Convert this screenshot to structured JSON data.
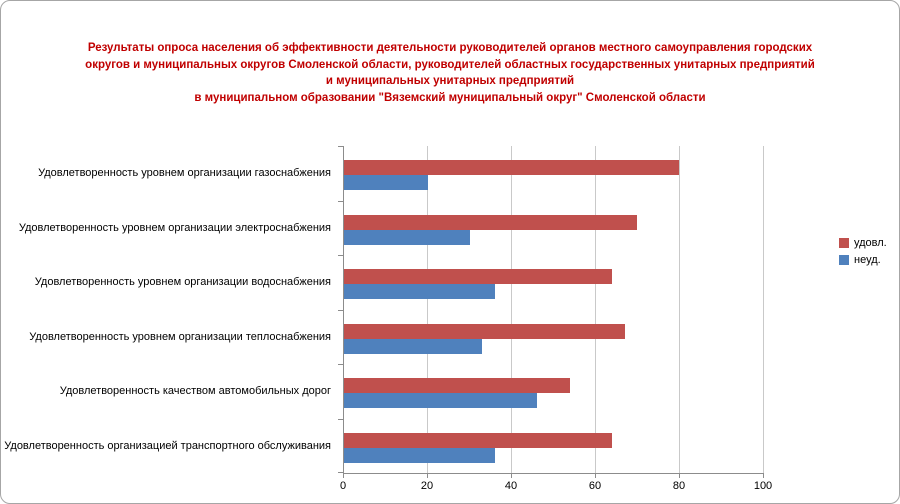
{
  "chart_data": {
    "type": "bar",
    "orientation": "horizontal",
    "title_lines": [
      "Результаты опроса населения об эффективности деятельности руководителей органов местного самоуправления городских",
      "округов и муниципальных округов Смоленской области, руководителей областных государственных унитарных предприятий",
      "и муниципальных унитарных предприятий",
      "в муниципальном образовании \"Вяземский муниципальный округ\" Смоленской области"
    ],
    "title_color": "#C00000",
    "categories": [
      "Удовлетворенность уровнем организации газоснабжения",
      "Удовлетворенность уровнем организации электроснабжения",
      "Удовлетворенность уровнем организации водоснабжения",
      "Удовлетворенность уровнем организации теплоснабжения",
      "Удовлетворенность качеством автомобильных дорог",
      "Удовлетворенность организацией транспортного обслуживания"
    ],
    "series": [
      {
        "name": "удовл.",
        "color": "#C0504D",
        "values": [
          80,
          70,
          64,
          67,
          54,
          64
        ]
      },
      {
        "name": "неуд.",
        "color": "#4F81BD",
        "values": [
          20,
          30,
          36,
          33,
          46,
          36
        ]
      }
    ],
    "x_ticks": [
      "0",
      "20",
      "40",
      "60",
      "80",
      "100"
    ],
    "xlim": [
      0,
      100
    ],
    "grid": true,
    "grid_color": "#C9C9C9",
    "axis_color": "#8C8C8C",
    "legend_position": "right"
  }
}
